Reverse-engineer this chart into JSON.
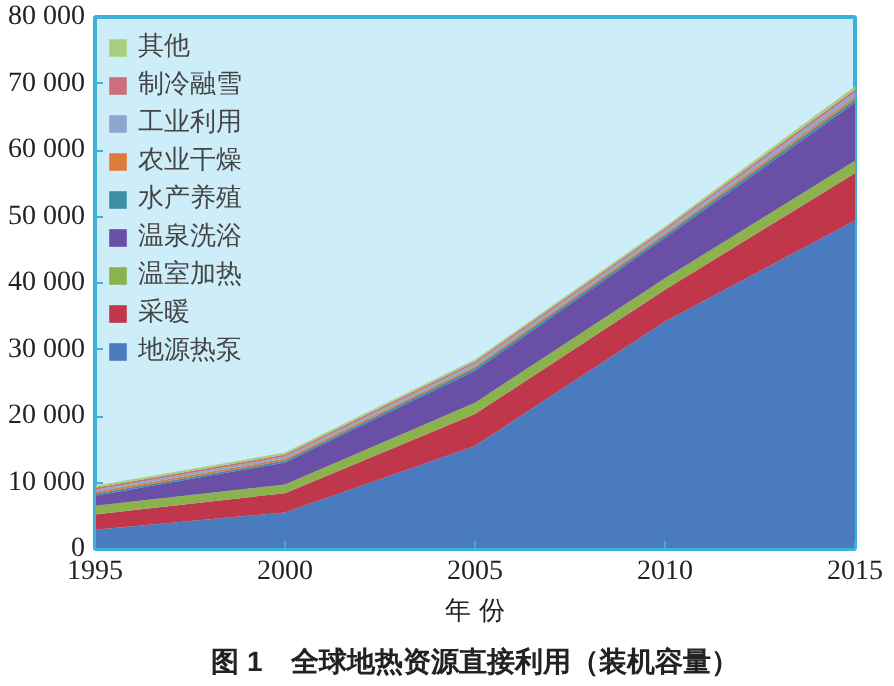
{
  "chart_data": {
    "type": "area",
    "stacked": true,
    "xlabel": "年 份",
    "annotations": [
      "图 1　全球地热资源直接利用（装机容量）"
    ],
    "x": [
      1995,
      2000,
      2005,
      2010,
      2015
    ],
    "xlim": [
      1995,
      2015
    ],
    "xticks": [
      1995,
      2000,
      2005,
      2010,
      2015
    ],
    "ylim": [
      0,
      80000
    ],
    "yticks": [
      0,
      {
        "value": 10000,
        "label": "10 000"
      },
      {
        "value": 20000,
        "label": "20 000"
      },
      {
        "value": 30000,
        "label": "30 000"
      },
      {
        "value": 40000,
        "label": "40 000"
      },
      {
        "value": 50000,
        "label": "50 000"
      },
      {
        "value": 60000,
        "label": "60 000"
      },
      {
        "value": 70000,
        "label": "70 000"
      },
      {
        "value": 80000,
        "label": "80 000"
      }
    ],
    "grid": false,
    "legend": "top left",
    "series": [
      {
        "name": "地源热泵",
        "color": "#4a7bbf",
        "values": [
          2900,
          5500,
          15500,
          34200,
          49400
        ]
      },
      {
        "name": "采暖",
        "color": "#c0364a",
        "values": [
          2300,
          2900,
          4800,
          4800,
          7100
        ]
      },
      {
        "name": "温室加热",
        "color": "#8cb24e",
        "values": [
          1300,
          1300,
          1700,
          1700,
          1900
        ]
      },
      {
        "name": "温泉洗浴",
        "color": "#6a4fa6",
        "values": [
          1500,
          3300,
          4800,
          6100,
          8700
        ]
      },
      {
        "name": "水产养殖",
        "color": "#3f8fa3",
        "values": [
          300,
          300,
          400,
          400,
          500
        ]
      },
      {
        "name": "农业干燥",
        "color": "#e07b3b",
        "values": [
          300,
          300,
          300,
          300,
          400
        ]
      },
      {
        "name": "工业利用",
        "color": "#8fa7cf",
        "values": [
          300,
          300,
          400,
          400,
          700
        ]
      },
      {
        "name": "制冷融雪",
        "color": "#c9707a",
        "values": [
          300,
          300,
          300,
          300,
          400
        ]
      },
      {
        "name": "其他",
        "color": "#a8cf7e",
        "values": [
          300,
          300,
          300,
          300,
          500
        ]
      }
    ]
  }
}
